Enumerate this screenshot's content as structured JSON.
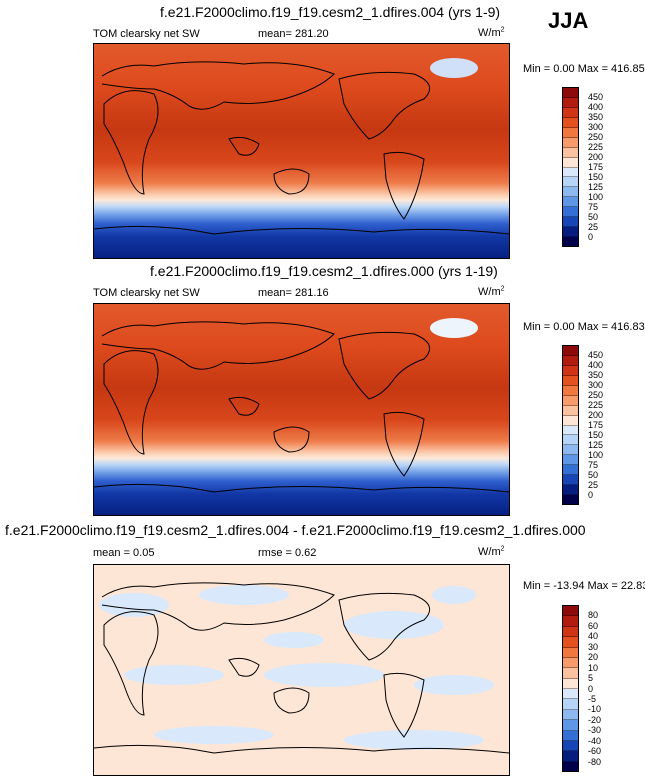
{
  "season": "JJA",
  "panels": [
    {
      "title": "f.e21.F2000climo.f19_f19.cesm2_1.dfires.004 (yrs 1-9)",
      "left_label": "TOM clearsky net SW",
      "center_label": "mean= 281.20",
      "units": "W/m",
      "units_sup": "2",
      "minmax": "Min =   0.00 Max = 416.85",
      "levels": [
        "450",
        "400",
        "350",
        "300",
        "250",
        "225",
        "200",
        "175",
        "150",
        "125",
        "100",
        "75",
        "50",
        "25",
        "0"
      ],
      "colors": [
        "#8c0a0a",
        "#b11c0e",
        "#cf3414",
        "#e5501f",
        "#f0773d",
        "#f79b6a",
        "#fbc2a0",
        "#fde6d6",
        "#d9e9fb",
        "#b6d4f7",
        "#8db8f0",
        "#5e97e6",
        "#346fd6",
        "#1745b5",
        "#061c7e",
        "#00004a"
      ]
    },
    {
      "title": "f.e21.F2000climo.f19_f19.cesm2_1.dfires.000 (yrs 1-19)",
      "left_label": "TOM clearsky net SW",
      "center_label": "mean= 281.16",
      "units": "W/m",
      "units_sup": "2",
      "minmax": "Min =   0.00 Max = 416.83",
      "levels": [
        "450",
        "400",
        "350",
        "300",
        "250",
        "225",
        "200",
        "175",
        "150",
        "125",
        "100",
        "75",
        "50",
        "25",
        "0"
      ],
      "colors": [
        "#8c0a0a",
        "#b11c0e",
        "#cf3414",
        "#e5501f",
        "#f0773d",
        "#f79b6a",
        "#fbc2a0",
        "#fde6d6",
        "#d9e9fb",
        "#b6d4f7",
        "#8db8f0",
        "#5e97e6",
        "#346fd6",
        "#1745b5",
        "#061c7e",
        "#00004a"
      ]
    },
    {
      "title": "f.e21.F2000climo.f19_f19.cesm2_1.dfires.004 - f.e21.F2000climo.f19_f19.cesm2_1.dfires.000",
      "left_label": "mean =   0.05",
      "center_label": "rmse =   0.62",
      "units": "W/m",
      "units_sup": "2",
      "minmax": "Min = -13.94 Max =  22.83",
      "levels": [
        "80",
        "60",
        "40",
        "30",
        "20",
        "10",
        "5",
        "0",
        "-5",
        "-10",
        "-20",
        "-30",
        "-40",
        "-60",
        "-80"
      ],
      "colors": [
        "#8c0a0a",
        "#b11c0e",
        "#cf3414",
        "#e5501f",
        "#f0773d",
        "#f79b6a",
        "#fbc2a0",
        "#fde6d6",
        "#d9e9fb",
        "#b6d4f7",
        "#8db8f0",
        "#5e97e6",
        "#346fd6",
        "#1745b5",
        "#061c7e",
        "#00004a"
      ]
    }
  ]
}
